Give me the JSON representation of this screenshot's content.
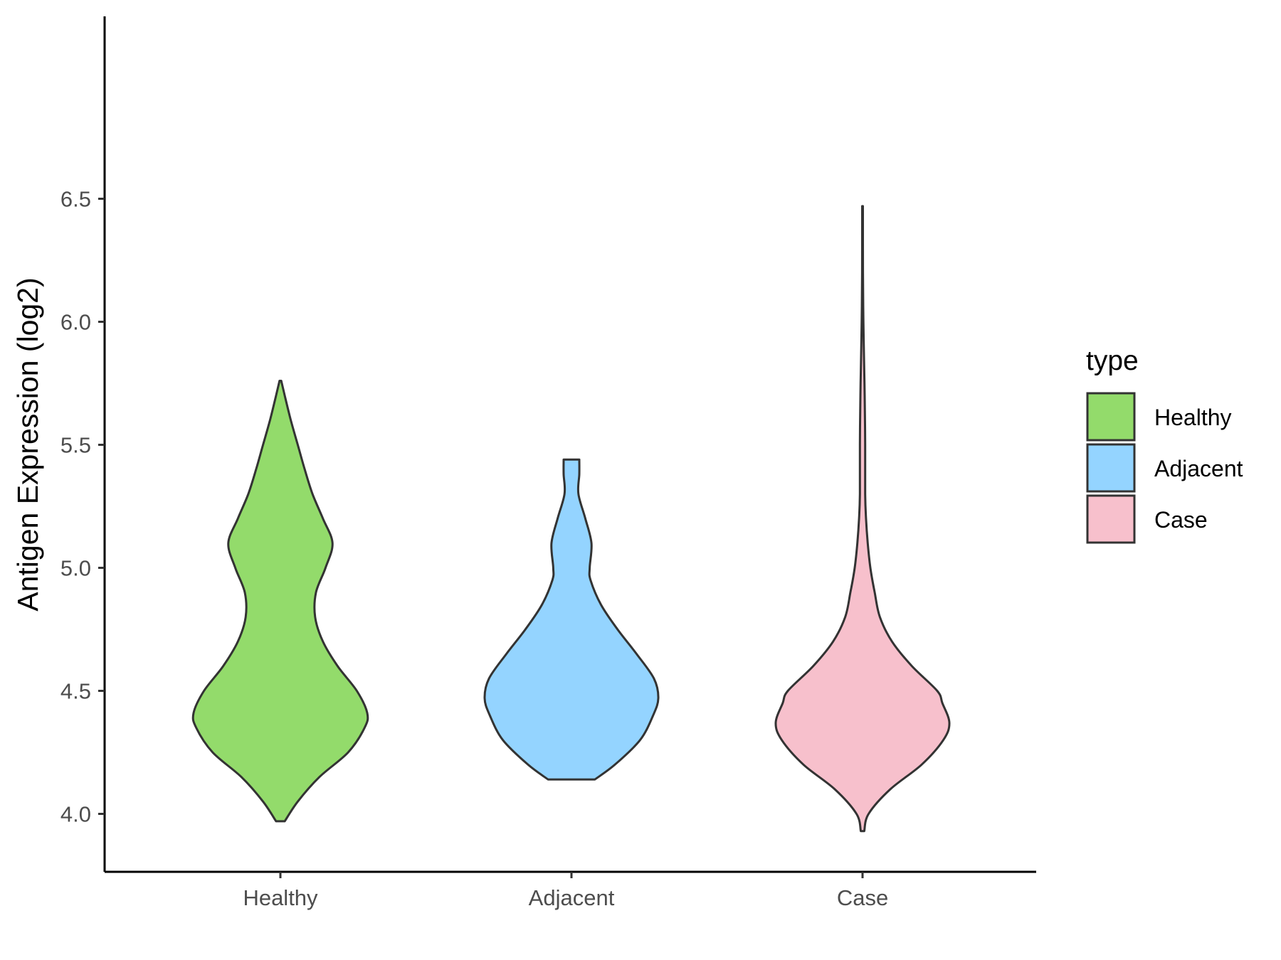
{
  "chart_data": {
    "type": "violin",
    "categories": [
      "Healthy",
      "Adjacent",
      "Case"
    ],
    "ylabel": "Antigen Expression (log2)",
    "xlabel": "",
    "ylim": [
      3.83,
      6.6
    ],
    "yticks": [
      "4.0",
      "4.5",
      "5.0",
      "5.5",
      "6.0",
      "6.5"
    ],
    "grid": false,
    "legend": {
      "title": "type",
      "position": "right",
      "items": [
        {
          "label": "Healthy",
          "color": "#93DB6B"
        },
        {
          "label": "Adjacent",
          "color": "#94D4FF"
        },
        {
          "label": "Case",
          "color": "#F7C0CC"
        }
      ]
    },
    "series": [
      {
        "category": "Healthy",
        "color": "#93DB6B",
        "min": 3.97,
        "max": 5.76,
        "density_profile": [
          [
            3.97,
            0.05
          ],
          [
            4.05,
            0.2
          ],
          [
            4.15,
            0.45
          ],
          [
            4.25,
            0.78
          ],
          [
            4.35,
            0.97
          ],
          [
            4.41,
            1.0
          ],
          [
            4.5,
            0.88
          ],
          [
            4.6,
            0.66
          ],
          [
            4.7,
            0.49
          ],
          [
            4.8,
            0.4
          ],
          [
            4.9,
            0.41
          ],
          [
            5.0,
            0.52
          ],
          [
            5.1,
            0.6
          ],
          [
            5.2,
            0.49
          ],
          [
            5.3,
            0.37
          ],
          [
            5.4,
            0.28
          ],
          [
            5.5,
            0.2
          ],
          [
            5.6,
            0.12
          ],
          [
            5.7,
            0.05
          ],
          [
            5.76,
            0.01
          ]
        ]
      },
      {
        "category": "Adjacent",
        "color": "#94D4FF",
        "min": 4.14,
        "max": 5.44,
        "density_profile": [
          [
            4.14,
            0.27
          ],
          [
            4.2,
            0.5
          ],
          [
            4.3,
            0.79
          ],
          [
            4.4,
            0.94
          ],
          [
            4.47,
            1.0
          ],
          [
            4.55,
            0.95
          ],
          [
            4.65,
            0.75
          ],
          [
            4.75,
            0.53
          ],
          [
            4.85,
            0.34
          ],
          [
            4.95,
            0.22
          ],
          [
            5.0,
            0.21
          ],
          [
            5.1,
            0.23
          ],
          [
            5.2,
            0.16
          ],
          [
            5.3,
            0.08
          ],
          [
            5.38,
            0.09
          ],
          [
            5.44,
            0.09
          ]
        ]
      },
      {
        "category": "Case",
        "color": "#F7C0CC",
        "min": 3.93,
        "max": 6.47,
        "density_profile": [
          [
            3.93,
            0.02
          ],
          [
            4.0,
            0.07
          ],
          [
            4.1,
            0.32
          ],
          [
            4.2,
            0.68
          ],
          [
            4.3,
            0.93
          ],
          [
            4.37,
            1.0
          ],
          [
            4.45,
            0.92
          ],
          [
            4.5,
            0.86
          ],
          [
            4.6,
            0.57
          ],
          [
            4.7,
            0.34
          ],
          [
            4.8,
            0.2
          ],
          [
            4.9,
            0.14
          ],
          [
            5.0,
            0.09
          ],
          [
            5.1,
            0.06
          ],
          [
            5.2,
            0.04
          ],
          [
            5.3,
            0.03
          ],
          [
            5.5,
            0.03
          ],
          [
            5.7,
            0.025
          ],
          [
            5.8,
            0.02
          ],
          [
            6.0,
            0.01
          ],
          [
            6.2,
            0.005
          ],
          [
            6.47,
            0.004
          ]
        ]
      }
    ]
  }
}
